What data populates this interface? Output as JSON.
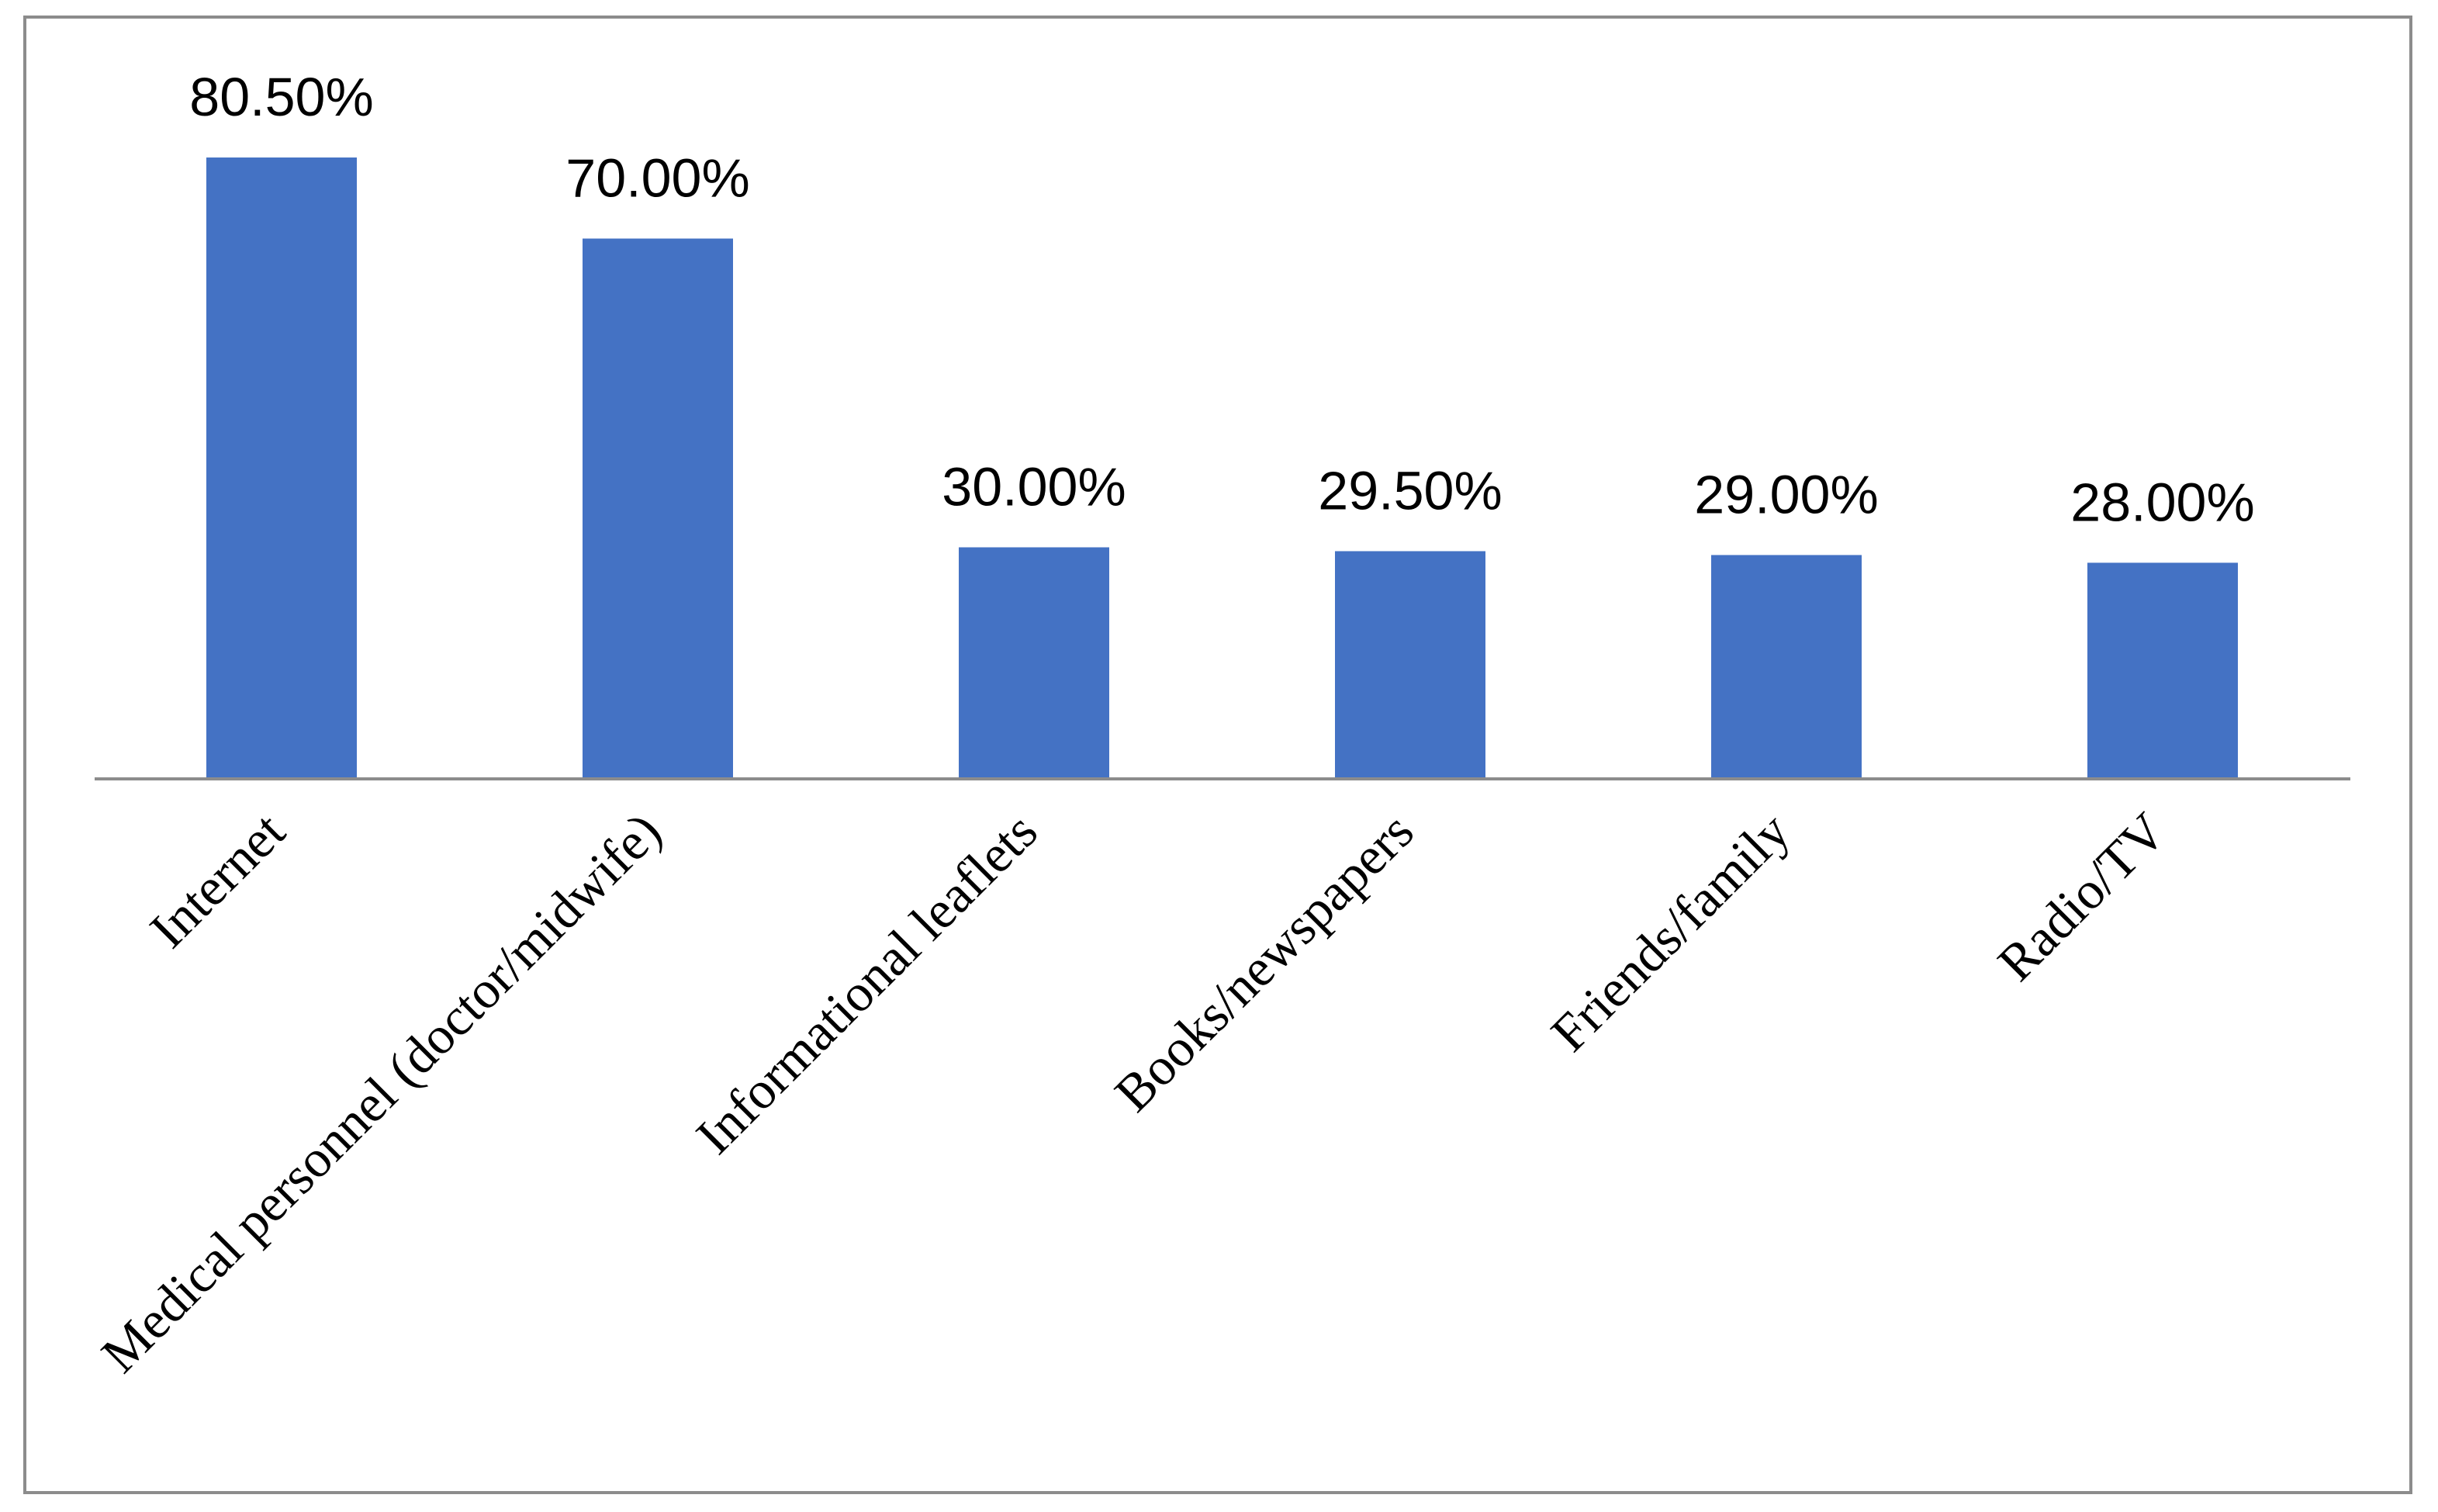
{
  "chart_data": {
    "type": "bar",
    "title": "",
    "xlabel": "",
    "ylabel": "",
    "ylim": [
      0,
      100
    ],
    "grid": false,
    "legend": "none",
    "categories": [
      "Internet",
      "Medical personnel (doctor/midwife)",
      "Informational leaflets",
      "Books/newspapers",
      "Friends/family",
      "Radio/TV"
    ],
    "values": [
      80.5,
      70.0,
      30.0,
      29.5,
      29.0,
      28.0
    ],
    "data_labels": [
      "80.50%",
      "70.00%",
      "30.00%",
      "29.50%",
      "29.00%",
      "28.00%"
    ],
    "bar_color": "#4472c4",
    "axis_color": "#8c8c8c"
  }
}
